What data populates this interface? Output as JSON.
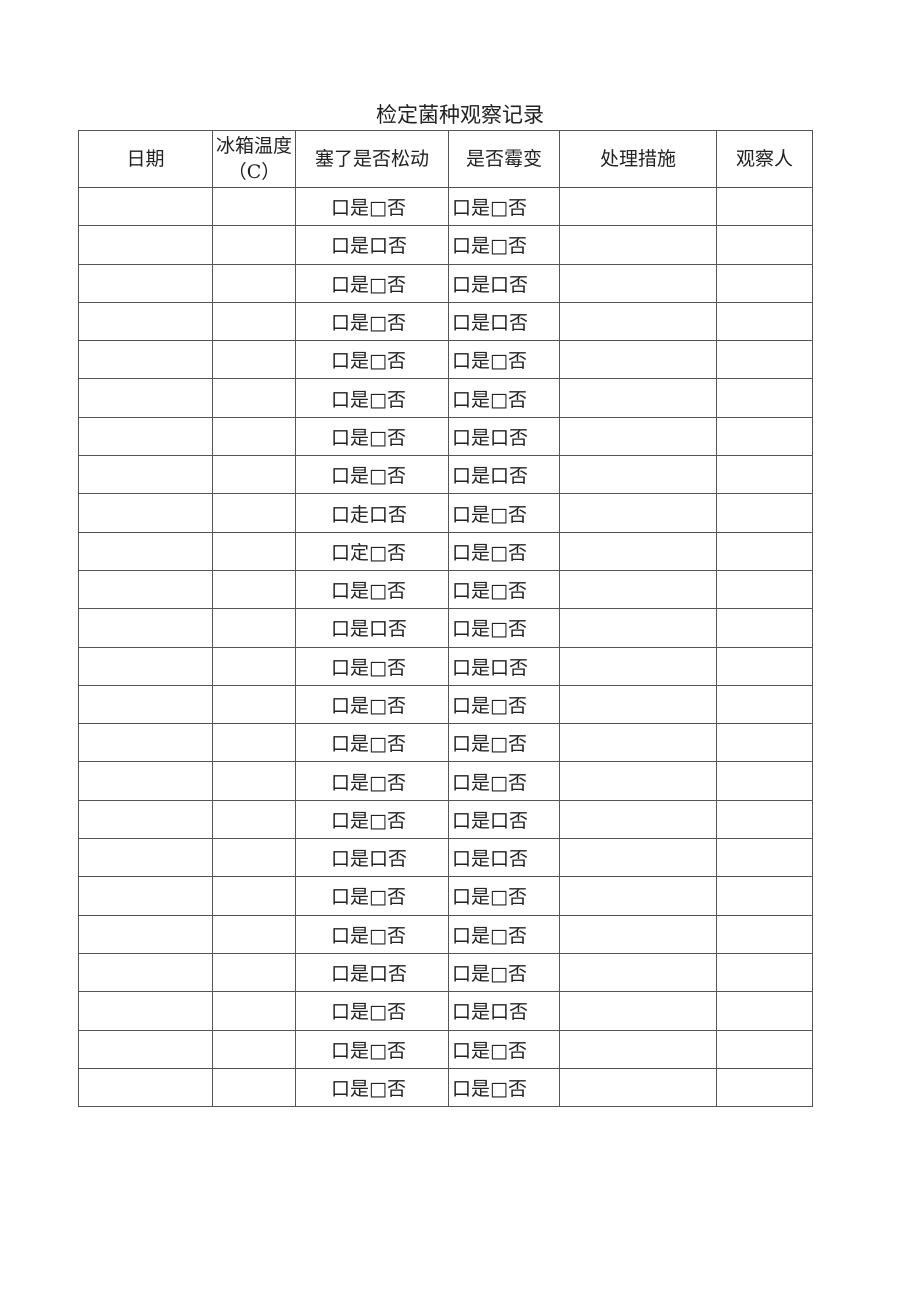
{
  "title": "检定菌种观察记录",
  "headers": [
    "日期",
    "冰箱温度（C）",
    "塞了是否松动",
    "是否霉变",
    "处理措施",
    "观察人"
  ],
  "rows": [
    [
      "口是□否",
      "口是□否"
    ],
    [
      "口是口否",
      "口是□否"
    ],
    [
      "口是□否",
      "口是口否"
    ],
    [
      "口是□否",
      "口是口否"
    ],
    [
      "口是□否",
      "口是□否"
    ],
    [
      "口是□否",
      "口是□否"
    ],
    [
      "口是□否",
      "口是口否"
    ],
    [
      "口是□否",
      "口是口否"
    ],
    [
      "口走口否",
      "口是□否"
    ],
    [
      "口定□否",
      "口是□否"
    ],
    [
      "口是□否",
      "口是□否"
    ],
    [
      "口是口否",
      "口是□否"
    ],
    [
      "口是□否",
      "口是口否"
    ],
    [
      "口是□否",
      "口是□否"
    ],
    [
      "口是□否",
      "口是□否"
    ],
    [
      "口是□否",
      "口是□否"
    ],
    [
      "口是□否",
      "口是口否"
    ],
    [
      "口是口否",
      "口是口否"
    ],
    [
      "口是□否",
      "口是□否"
    ],
    [
      "口是□否",
      "口是□否"
    ],
    [
      "口是口否",
      "口是□否"
    ],
    [
      "口是□否",
      "口是口否"
    ],
    [
      "口是□否",
      "口是□否"
    ],
    [
      "口是□否",
      "口是□否"
    ]
  ]
}
